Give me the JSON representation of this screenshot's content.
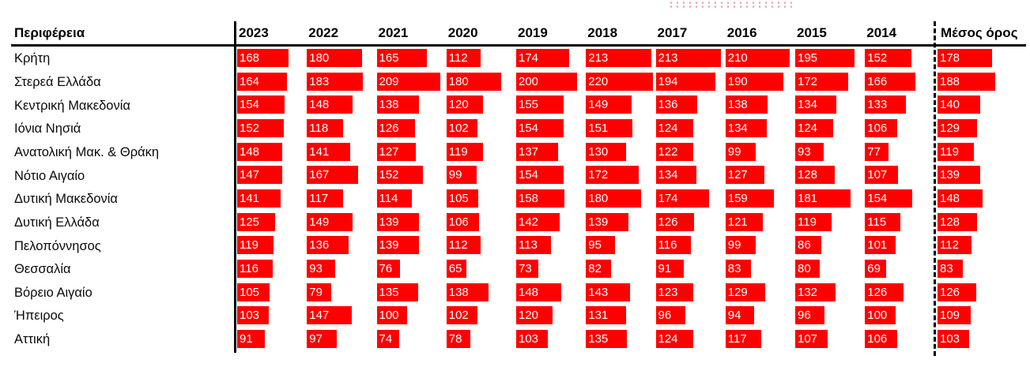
{
  "table": {
    "region_header": "Περιφέρεια",
    "average_header": "Μέσος όρος",
    "bar_color": "#fe0000",
    "value_text_color": "#ffffff",
    "line_color": "#000000",
    "dotted_decor_color": "#e05050"
  },
  "chart_data": {
    "type": "bar",
    "title": "",
    "xlabel": "",
    "ylabel": "",
    "legend_position": "none",
    "grid": false,
    "cell_bar_scale": [
      0,
      228
    ],
    "categories": [
      "Κρήτη",
      "Στερεά Ελλάδα",
      "Κεντρική Μακεδονία",
      "Ιόνια Νησιά",
      "Ανατολική Μακ. & Θράκη",
      "Νότιο Αιγαίο",
      "Δυτική Μακεδονία",
      "Δυτική Ελλάδα",
      "Πελοπόννησος",
      "Θεσσαλία",
      "Βόρειο Αιγαίο",
      "Ήπειρος",
      "Αττική"
    ],
    "series": [
      {
        "name": "2023",
        "values": [
          168,
          164,
          154,
          152,
          148,
          147,
          141,
          125,
          119,
          116,
          105,
          103,
          91
        ]
      },
      {
        "name": "2022",
        "values": [
          180,
          183,
          148,
          118,
          141,
          167,
          117,
          149,
          136,
          93,
          79,
          147,
          97
        ]
      },
      {
        "name": "2021",
        "values": [
          165,
          209,
          138,
          126,
          127,
          152,
          114,
          139,
          139,
          76,
          135,
          100,
          74
        ]
      },
      {
        "name": "2020",
        "values": [
          112,
          180,
          120,
          102,
          119,
          99,
          105,
          106,
          112,
          65,
          138,
          102,
          78
        ]
      },
      {
        "name": "2019",
        "values": [
          174,
          200,
          155,
          154,
          137,
          154,
          158,
          142,
          113,
          73,
          148,
          120,
          103
        ]
      },
      {
        "name": "2018",
        "values": [
          213,
          220,
          149,
          151,
          130,
          172,
          180,
          139,
          95,
          82,
          143,
          131,
          135
        ]
      },
      {
        "name": "2017",
        "values": [
          213,
          194,
          136,
          124,
          122,
          134,
          174,
          126,
          116,
          91,
          123,
          96,
          124
        ]
      },
      {
        "name": "2016",
        "values": [
          210,
          190,
          138,
          134,
          99,
          127,
          159,
          121,
          99,
          83,
          129,
          94,
          117
        ]
      },
      {
        "name": "2015",
        "values": [
          195,
          172,
          134,
          124,
          93,
          128,
          181,
          119,
          86,
          80,
          132,
          96,
          107
        ]
      },
      {
        "name": "2014",
        "values": [
          152,
          166,
          133,
          106,
          77,
          107,
          154,
          115,
          101,
          69,
          126,
          100,
          106
        ]
      },
      {
        "name": "Μέσος όρος",
        "values": [
          178,
          188,
          140,
          129,
          119,
          139,
          148,
          128,
          112,
          83,
          126,
          109,
          103
        ]
      }
    ]
  }
}
